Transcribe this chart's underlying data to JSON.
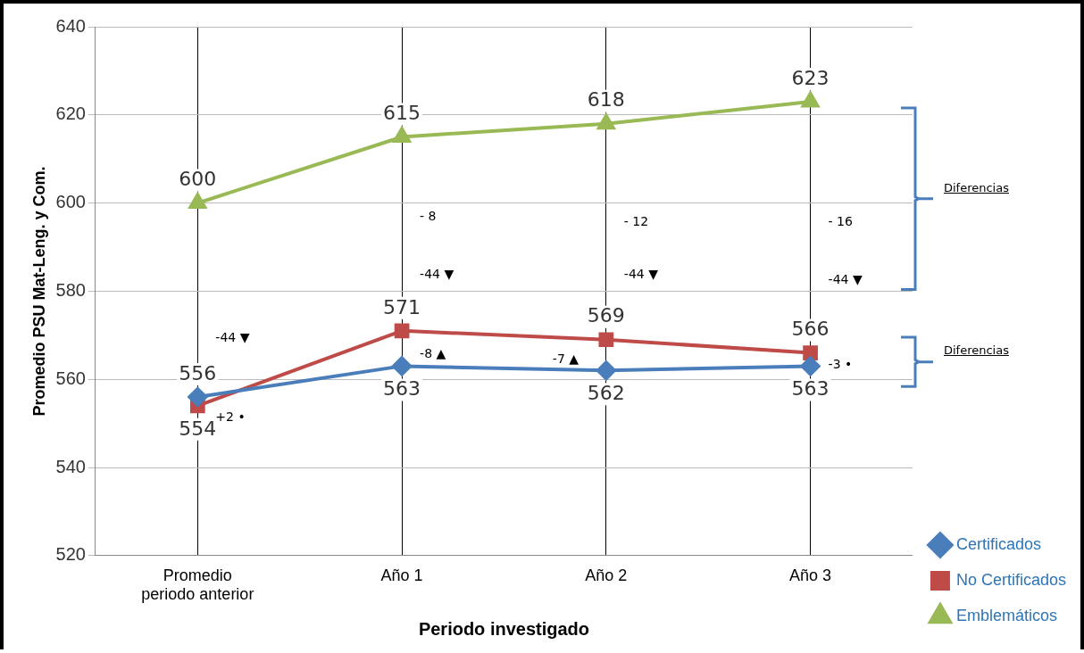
{
  "chart_data": {
    "type": "line",
    "xlabel": "Periodo investigado",
    "ylabel": "Promedio PSU Mat-Leng. y Com.",
    "categories": [
      "Promedio periodo anterior",
      "Año 1",
      "Año 2",
      "Año 3"
    ],
    "series": [
      {
        "name": "Certificados",
        "color": "#4a7ebb",
        "marker": "diamond",
        "values": [
          556,
          563,
          562,
          563
        ]
      },
      {
        "name": "No Certificados",
        "color": "#be4b48",
        "marker": "square",
        "values": [
          554,
          571,
          569,
          566
        ]
      },
      {
        "name": "Emblemáticos",
        "color": "#98b954",
        "marker": "triangle",
        "values": [
          600,
          615,
          618,
          623
        ]
      }
    ],
    "ylim": [
      520,
      640
    ],
    "yticks": [
      520,
      540,
      560,
      580,
      600,
      620,
      640
    ],
    "grid": true,
    "legend": "right",
    "data_labels": true,
    "annotations": [
      "-44 ▼",
      "+2 •",
      "- 8",
      "-44 ▼",
      "-8 ▲",
      "- 12",
      "-44 ▼",
      "-7 ▲",
      "- 16",
      "-44 ▼",
      "-3 •",
      "Diferencias",
      "Diferencias"
    ]
  }
}
